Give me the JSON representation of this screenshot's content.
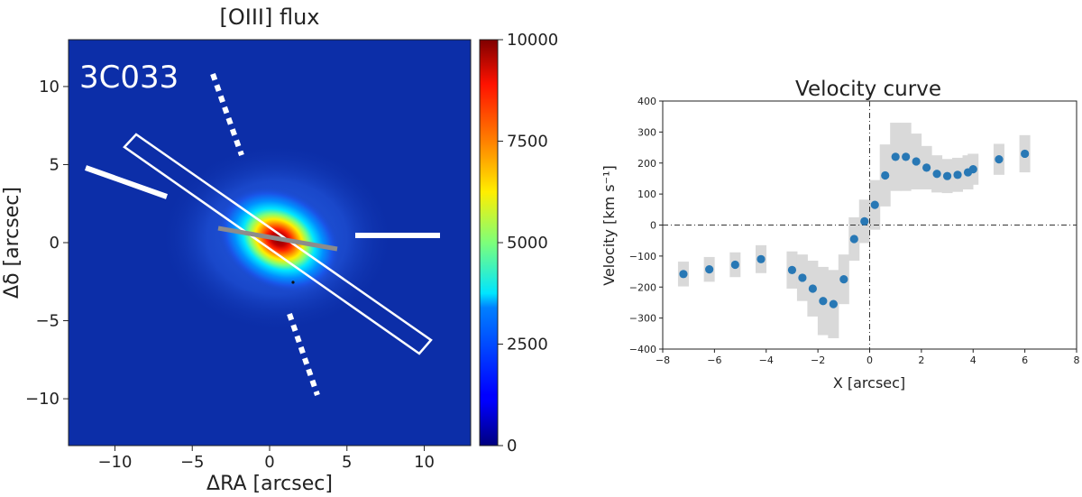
{
  "chart_data": [
    {
      "type": "heatmap",
      "title": "[OIII] flux",
      "annotation": "3C033",
      "xlabel": "ΔRA [arcsec]",
      "ylabel": "Δδ [arcsec]",
      "xlim": [
        -13,
        13
      ],
      "ylim": [
        -13,
        13
      ],
      "xticks": [
        "−10",
        "−5",
        "0",
        "5",
        "10"
      ],
      "yticks": [
        "10",
        "5",
        "0",
        "−5",
        "−10"
      ],
      "colorbar": {
        "range": [
          0,
          10000
        ],
        "ticks": [
          "10000",
          "7500",
          "5000",
          "2500",
          "0"
        ],
        "colormap": "jet"
      },
      "peak": {
        "x": 0.6,
        "y": 0.2
      },
      "background_color": "#0c2ea8"
    },
    {
      "type": "scatter",
      "title": "Velocity curve",
      "xlabel": "X [arcsec]",
      "ylabel": "Velocity [km s⁻¹]",
      "xlim": [
        -8,
        8
      ],
      "ylim": [
        -400,
        400
      ],
      "xticks": [
        "−8",
        "−6",
        "−4",
        "−2",
        "0",
        "2",
        "4",
        "6",
        "8"
      ],
      "yticks": [
        "400",
        "300",
        "200",
        "100",
        "0",
        "−100",
        "−200",
        "−300",
        "−400"
      ],
      "grid": false,
      "color": "#2878b5",
      "error_color": "#d9d9d9",
      "x": [
        -7.2,
        -6.2,
        -5.2,
        -4.2,
        -3.0,
        -2.6,
        -2.2,
        -1.8,
        -1.4,
        -1.0,
        -0.6,
        -0.2,
        0.2,
        0.6,
        1.0,
        1.4,
        1.8,
        2.2,
        2.6,
        3.0,
        3.4,
        3.8,
        4.0,
        5.0,
        6.0
      ],
      "y": [
        -158,
        -143,
        -128,
        -110,
        -145,
        -170,
        -205,
        -245,
        -255,
        -175,
        -45,
        12,
        65,
        160,
        220,
        220,
        205,
        185,
        165,
        158,
        162,
        170,
        180,
        212,
        230
      ],
      "err": [
        40,
        40,
        40,
        45,
        60,
        75,
        90,
        110,
        110,
        80,
        70,
        70,
        80,
        100,
        110,
        110,
        90,
        70,
        60,
        55,
        55,
        55,
        50,
        50,
        60
      ]
    }
  ]
}
